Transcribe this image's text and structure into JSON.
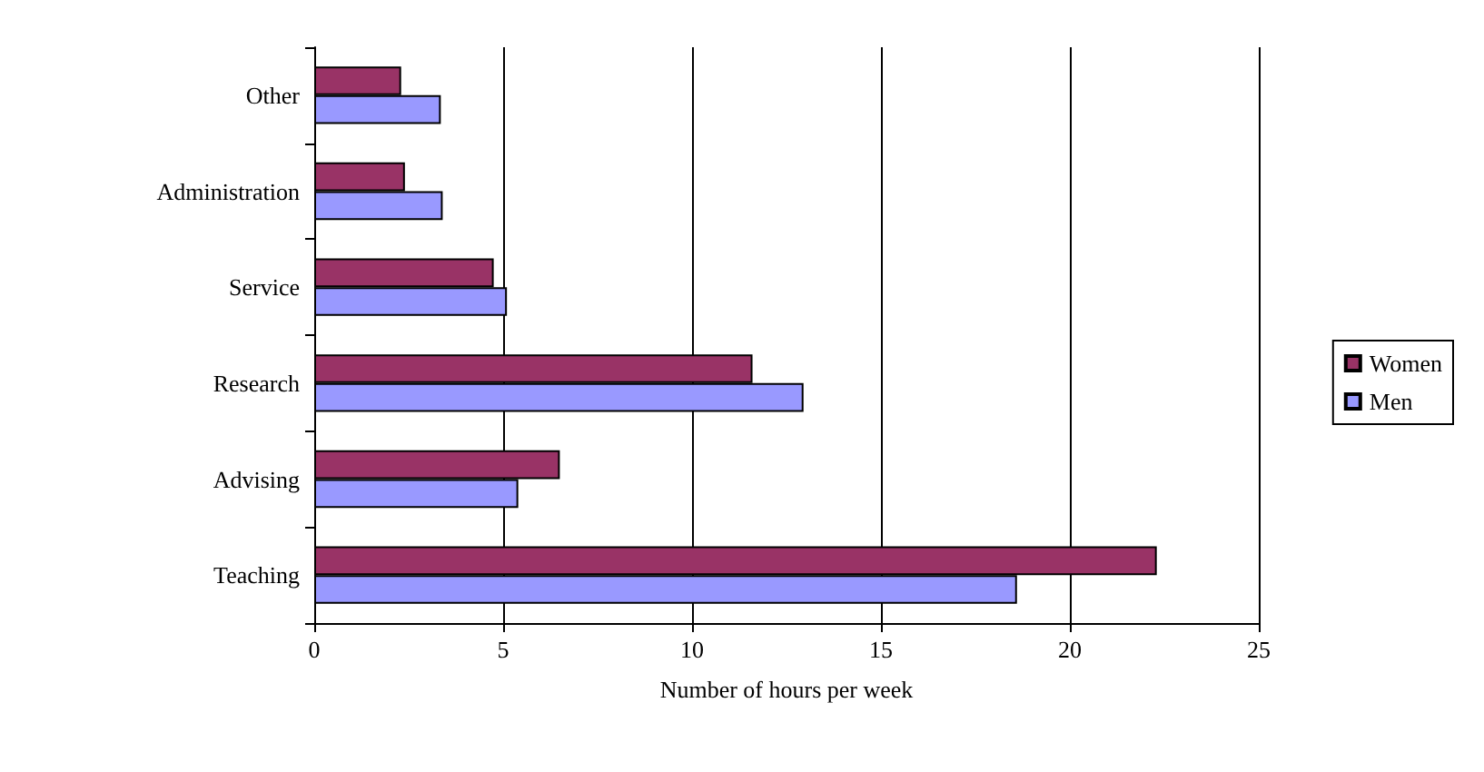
{
  "chart_data": {
    "type": "bar",
    "orientation": "horizontal",
    "xlabel": "Number of hours per week",
    "categories": [
      "Other",
      "Administration",
      "Service",
      "Research",
      "Advising",
      "Teaching"
    ],
    "series": [
      {
        "name": "Women",
        "color": "#993366",
        "values": [
          2.3,
          2.4,
          4.75,
          11.6,
          6.5,
          22.3
        ]
      },
      {
        "name": "Men",
        "color": "#9999ff",
        "values": [
          3.35,
          3.4,
          5.1,
          12.95,
          5.4,
          18.6
        ]
      }
    ],
    "xlim": [
      0,
      25
    ],
    "xticks": [
      0,
      5,
      10,
      15,
      20,
      25
    ],
    "grid": "x",
    "legend": "right"
  }
}
